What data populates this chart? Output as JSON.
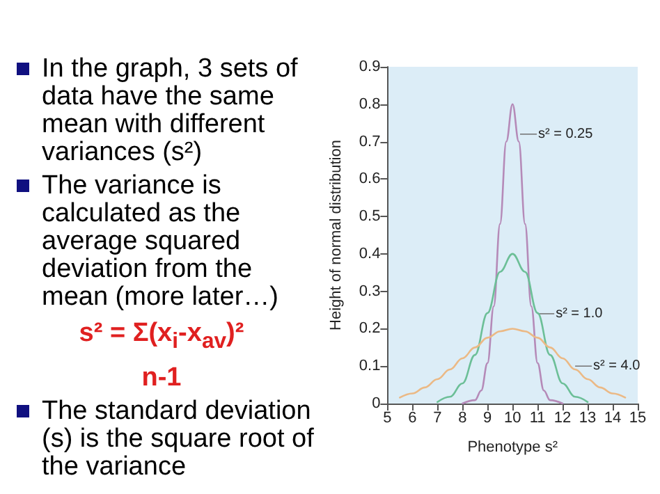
{
  "chart_data": {
    "type": "line",
    "xlabel": "Phenotype s²",
    "ylabel": "Height of normal distribution",
    "xlim": [
      5,
      15
    ],
    "xticks": [
      5,
      6,
      7,
      8,
      9,
      10,
      11,
      12,
      13,
      14,
      15
    ],
    "ylim": [
      0,
      0.9
    ],
    "yticks": [
      0,
      0.1,
      0.2,
      0.3,
      0.4,
      0.5,
      0.6,
      0.7,
      0.8,
      0.9
    ],
    "grid": false,
    "marker": "none",
    "line_style": "solid",
    "series": [
      {
        "color": "#b58ab8",
        "x": [
          8,
          8.5,
          8.75,
          9,
          9.25,
          9.5,
          9.75,
          10,
          10.25,
          10.5,
          10.75,
          11,
          11.25,
          11.5,
          12
        ],
        "values": [
          0,
          0.009,
          0.035,
          0.108,
          0.26,
          0.48,
          0.7,
          0.8,
          0.7,
          0.48,
          0.26,
          0.108,
          0.035,
          0.009,
          0
        ]
      },
      {
        "color": "#6cbf97",
        "x": [
          7,
          7.5,
          8,
          8.5,
          9,
          9.5,
          10,
          10.5,
          11,
          11.5,
          12,
          12.5,
          13
        ],
        "values": [
          0.004,
          0.018,
          0.054,
          0.13,
          0.242,
          0.352,
          0.4,
          0.352,
          0.242,
          0.13,
          0.054,
          0.018,
          0.004
        ]
      },
      {
        "color": "#ebb985",
        "x": [
          5.5,
          6,
          6.5,
          7,
          7.5,
          8,
          8.5,
          9,
          9.5,
          10,
          10.5,
          11,
          11.5,
          12,
          12.5,
          13,
          13.5,
          14,
          14.5
        ],
        "values": [
          0.016,
          0.027,
          0.043,
          0.065,
          0.091,
          0.121,
          0.15,
          0.176,
          0.193,
          0.2,
          0.193,
          0.176,
          0.15,
          0.121,
          0.091,
          0.065,
          0.043,
          0.027,
          0.016
        ]
      }
    ],
    "annotations": [
      {
        "text": "s² = 0.25",
        "x": 10.3,
        "y": 0.72
      },
      {
        "text": "s² = 1.0",
        "x": 11,
        "y": 0.24
      },
      {
        "text": "s² = 4.0",
        "x": 12.5,
        "y": 0.1
      },
      "In the graph, 3 sets of data have the same mean with different variances (s²)",
      "The variance is calculated as the average squared deviation from the mean (more later…)",
      "s² = Σ(x$_{i}$-x$_{av}$)²",
      "n-1",
      "The standard deviation (s) is the square root of the variance"
    ]
  }
}
